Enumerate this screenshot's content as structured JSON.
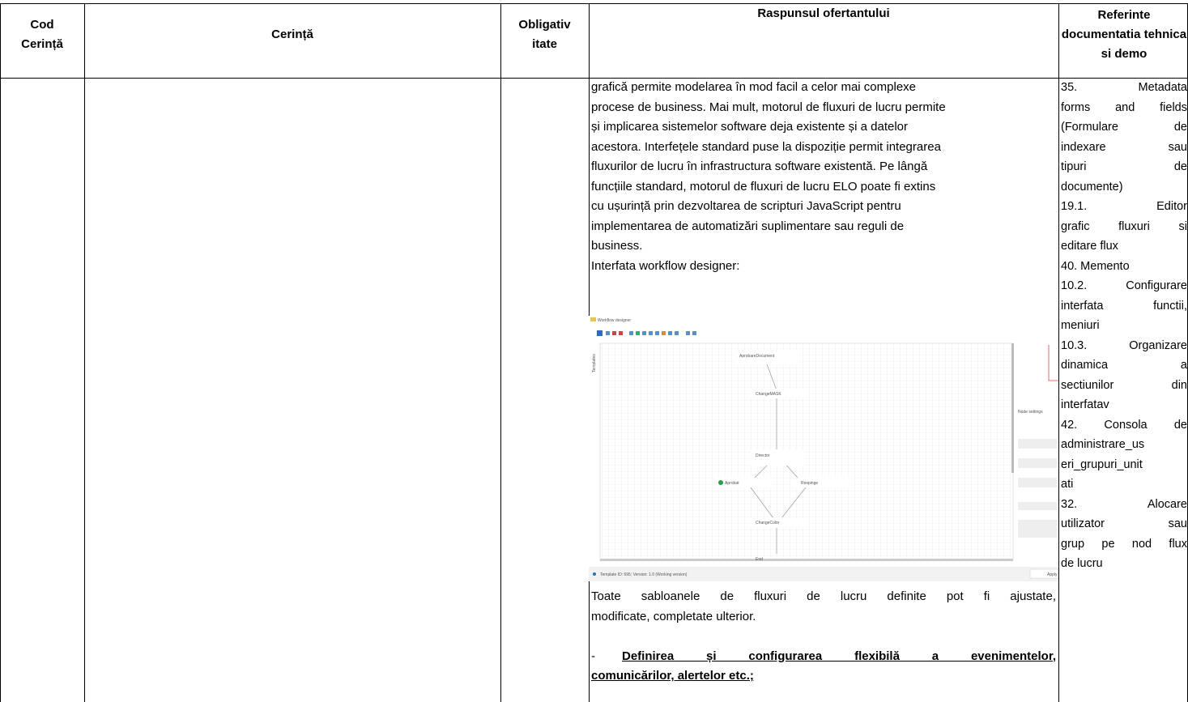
{
  "header": {
    "cod": "Cod Cerință",
    "cerinta": "Cerință",
    "obligativitate": [
      "Obligativ",
      "itate"
    ],
    "raspuns": "Raspunsul ofertantului",
    "referinte": "Referinte documentatia tehnica si demo"
  },
  "row": {
    "raspuns": {
      "paragraph_lines": [
        "grafică permite modelarea în mod facil a celor mai complexe",
        "procese de business. Mai mult, motorul de fluxuri de lucru permite",
        "și implicarea sistemelor software deja existente și a datelor",
        "acestora. Interfețele standard puse la dispoziție permit integrarea",
        "fluxurilor de lucru în infrastructura software existentă. Pe lângă",
        "funcțiile standard, motorul de fluxuri de lucru ELO poate fi extins",
        "cu ușurință prin dezvoltarea de scripturi JavaScript pentru",
        "implementarea de automatizări suplimentare sau reguli de",
        "business."
      ],
      "caption": "Interfata workflow designer:",
      "screenshot": {
        "window_title": "Workflow designer",
        "side_tab": "Templates",
        "nodes": [
          "AprobareDocument",
          "ChangeMASK",
          "Director",
          "Aprobat",
          "Respinge",
          "ChangeColor",
          "End"
        ],
        "panel_title": "Node settings",
        "status": "Template ID: 695; Version: 1.0 (Working version)",
        "apply": "Apply"
      },
      "paragraph2_lines": [
        "Toate sabloanele de fluxuri de lucru definite pot fi ajustate,",
        "modificate, completate ulterior."
      ],
      "item": {
        "bullet": "-",
        "lines": [
          "Definirea și configurarea flexibilă a evenimentelor,",
          "comunicărilor, alertelor etc.;"
        ]
      }
    },
    "referinte": [
      [
        "35. Metadata",
        "forms and fields",
        "(Formulare de",
        "indexare sau",
        "tipuri de",
        "documente)"
      ],
      [
        "19.1. Editor",
        "grafic fluxuri si",
        "editare flux"
      ],
      [
        "40. Memento"
      ],
      [
        "10.2. Configurare",
        "interfata functii,",
        "meniuri"
      ],
      [
        "10.3. Organizare",
        "dinamica a",
        "sectiunilor din",
        "interfatav"
      ],
      [
        "42. Consola de",
        "administrare_us",
        "eri_grupuri_unit",
        "ati"
      ],
      [
        "32. Alocare",
        "utilizator sau",
        "grup pe nod flux",
        "de lucru"
      ]
    ]
  }
}
